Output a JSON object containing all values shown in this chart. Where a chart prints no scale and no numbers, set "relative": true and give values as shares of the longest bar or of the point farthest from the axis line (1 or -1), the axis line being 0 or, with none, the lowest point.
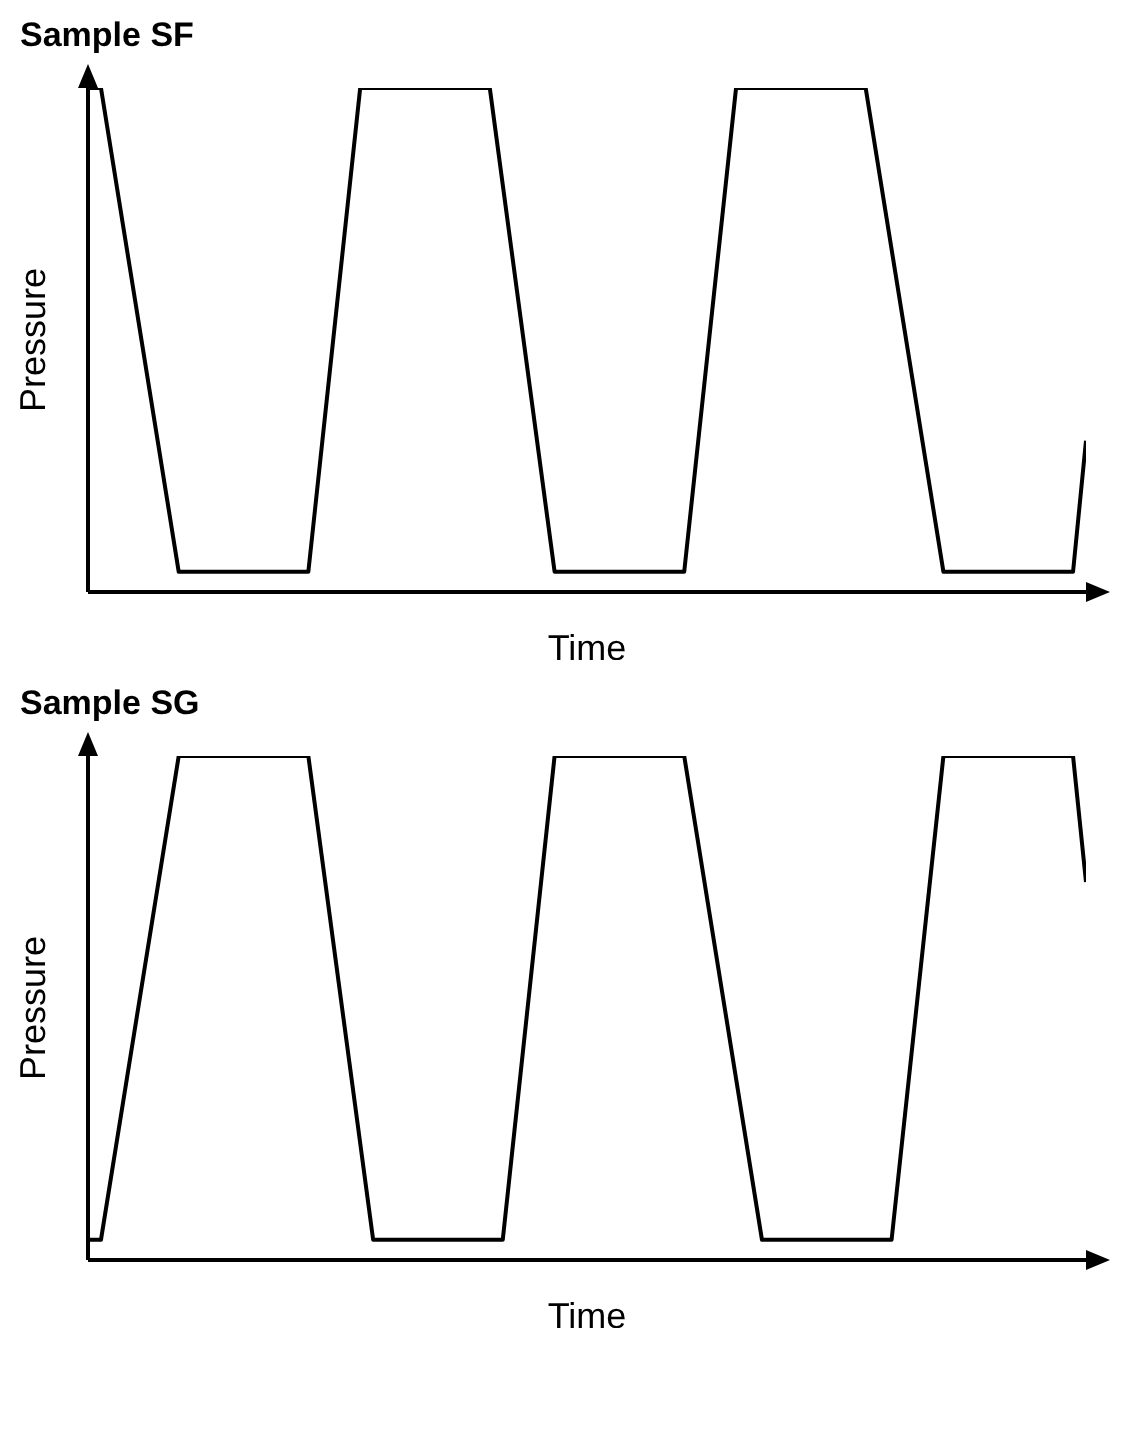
{
  "chart_data": [
    {
      "type": "line",
      "title": "Sample SF",
      "xlabel": "Time",
      "ylabel": "Pressure",
      "relative": true,
      "grid": false,
      "legend": false,
      "marker": "none",
      "line_style": "solid",
      "categories": [
        null,
        null,
        null,
        null,
        null,
        null,
        null,
        null,
        null,
        null,
        null,
        null,
        null,
        null,
        null,
        null,
        null,
        null,
        null,
        null,
        null,
        null,
        null,
        null,
        null,
        null,
        null,
        null,
        null,
        null,
        null,
        null,
        null,
        null,
        null,
        null,
        null,
        null,
        null,
        null,
        null,
        null,
        null,
        null,
        null,
        null,
        null,
        null,
        null,
        null,
        null,
        null,
        null,
        null,
        null,
        null,
        null,
        null,
        null,
        null,
        null,
        null,
        null,
        null,
        null,
        null,
        null,
        null,
        null,
        null,
        null,
        null,
        null,
        null,
        null,
        null,
        null,
        null
      ],
      "series": [
        {
          "color": "#000000",
          "values": [
            1,
            1,
            null,
            null,
            null,
            null,
            null,
            0.04,
            null,
            null,
            null,
            null,
            null,
            null,
            null,
            null,
            null,
            0.04,
            null,
            null,
            null,
            1,
            null,
            null,
            null,
            null,
            null,
            null,
            null,
            null,
            null,
            1,
            null,
            null,
            null,
            null,
            0.04,
            null,
            null,
            null,
            null,
            null,
            null,
            null,
            null,
            null,
            0.04,
            null,
            null,
            null,
            1,
            null,
            null,
            null,
            null,
            null,
            null,
            null,
            null,
            null,
            1,
            null,
            null,
            null,
            null,
            null,
            0.04,
            null,
            null,
            null,
            null,
            null,
            null,
            null,
            null,
            null,
            0.04,
            0.3
          ]
        }
      ]
    },
    {
      "type": "line",
      "title": "Sample SG",
      "xlabel": "Time",
      "ylabel": "Pressure",
      "relative": true,
      "grid": false,
      "legend": false,
      "marker": "none",
      "line_style": "solid",
      "categories": [
        null,
        null,
        null,
        null,
        null,
        null,
        null,
        null,
        null,
        null,
        null,
        null,
        null,
        null,
        null,
        null,
        null,
        null,
        null,
        null,
        null,
        null,
        null,
        null,
        null,
        null,
        null,
        null,
        null,
        null,
        null,
        null,
        null,
        null,
        null,
        null,
        null,
        null,
        null,
        null,
        null,
        null,
        null,
        null,
        null,
        null,
        null,
        null,
        null,
        null,
        null,
        null,
        null,
        null,
        null,
        null,
        null,
        null,
        null,
        null,
        null,
        null,
        null,
        null,
        null,
        null,
        null,
        null,
        null,
        null,
        null,
        null,
        null,
        null,
        null,
        null,
        null,
        null
      ],
      "series": [
        {
          "color": "#000000",
          "values": [
            0.04,
            0.04,
            null,
            null,
            null,
            null,
            null,
            1,
            null,
            null,
            null,
            null,
            null,
            null,
            null,
            null,
            null,
            1,
            null,
            null,
            null,
            null,
            0.04,
            null,
            null,
            null,
            null,
            null,
            null,
            null,
            null,
            null,
            0.04,
            null,
            null,
            null,
            1,
            null,
            null,
            null,
            null,
            null,
            null,
            null,
            null,
            null,
            1,
            null,
            null,
            null,
            null,
            null,
            0.04,
            null,
            null,
            null,
            null,
            null,
            null,
            null,
            null,
            null,
            0.04,
            null,
            null,
            null,
            1,
            null,
            null,
            null,
            null,
            null,
            null,
            null,
            null,
            null,
            1,
            0.75
          ]
        }
      ]
    }
  ]
}
